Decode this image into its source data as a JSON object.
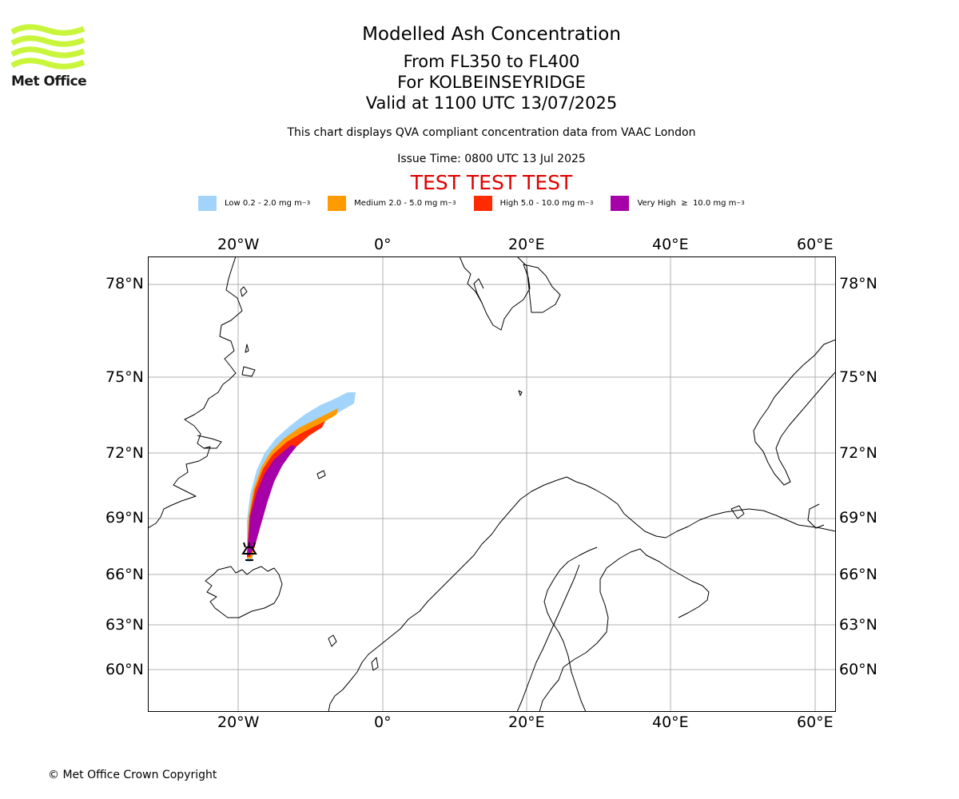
{
  "logo": {
    "text": "Met Office",
    "color": "#c9f53b"
  },
  "header": {
    "title": "Modelled Ash Concentration",
    "levels": "From FL350 to FL400",
    "location": "For KOLBEINSEYRIDGE",
    "valid": "Valid at 1100 UTC 13/07/2025",
    "disclaimer": "This chart displays QVA compliant concentration data from VAAC London",
    "issue_time": "Issue Time: 0800 UTC 13 Jul 2025",
    "test_banner": "TEST TEST TEST",
    "test_color": "#e00000"
  },
  "legend": [
    {
      "label": "Low 0.2 - 2.0 mg m",
      "exp": "−3",
      "color": "#a2d4fb"
    },
    {
      "label": "Medium 2.0 - 5.0 mg m",
      "exp": "−3",
      "color": "#ff9a00"
    },
    {
      "label": "High 5.0 - 10.0 mg m",
      "exp": "−3",
      "color": "#ff2a00"
    },
    {
      "label": "Very High  ≥  10.0 mg m",
      "exp": "−3",
      "color": "#a600a8"
    }
  ],
  "map": {
    "lon_ticks": [
      "20°W",
      "0°",
      "20°E",
      "40°E",
      "60°E"
    ],
    "lat_ticks": [
      "78°N",
      "75°N",
      "72°N",
      "69°N",
      "66°N",
      "63°N",
      "60°N"
    ],
    "volcano_icon": "volcano-icon"
  },
  "footer": {
    "copyright": "© Met Office Crown Copyright"
  }
}
